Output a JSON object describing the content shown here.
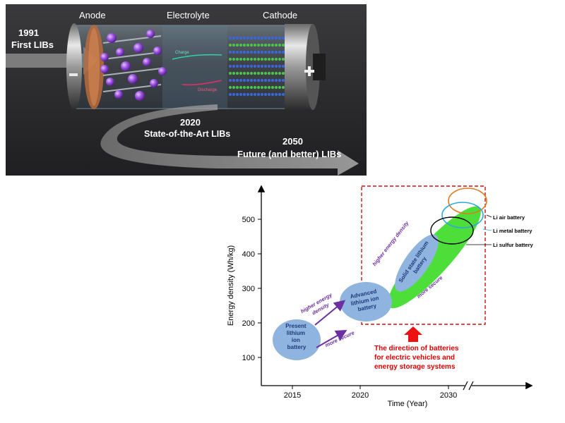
{
  "battery_figure": {
    "electrodes": {
      "anode": "Anode",
      "electrolyte": "Electrolyte",
      "cathode": "Cathode"
    },
    "terminals": {
      "negative": "−",
      "positive": "+"
    },
    "inner_labels": {
      "charge": "Charge",
      "discharge": "Discharge"
    },
    "timeline": {
      "y1991_year": "1991",
      "y1991_text": "First LIBs",
      "y2020_year": "2020",
      "y2020_text": "State-of-the-Art LIBs",
      "y2050_year": "2050",
      "y2050_text": "Future (and better) LIBs"
    }
  },
  "colors": {
    "battery_bg": "#2c2c2e",
    "ion_purple": "#9a4fe0",
    "copper": "#b86b3c",
    "green_blob": "#4dde3a",
    "blue_ellipse": "#8fb4e0",
    "arrow_purple": "#6b2fa0",
    "dashed_red": "#cc1111",
    "red_text": "#dd0000"
  },
  "chart_data": {
    "type": "diagram",
    "xlabel": "Time (Year)",
    "ylabel": "Energy density (Wh/kg)",
    "x_ticks": [
      "2015",
      "2020",
      "2030"
    ],
    "y_ticks": [
      "100",
      "200",
      "300",
      "400",
      "500"
    ],
    "ylim": [
      0,
      580
    ],
    "nodes": [
      {
        "name": "Present lithium ion battery",
        "lines": [
          "Present",
          "lithium",
          "ion",
          "battery"
        ]
      },
      {
        "name": "Advanced lithium ion battery",
        "lines": [
          "Advanced",
          "lithium ion",
          "battery"
        ]
      },
      {
        "name": "Solid state lithium battery",
        "lines": [
          "Solid state lithium",
          "battery"
        ]
      }
    ],
    "arrow_labels": {
      "higher_energy_density_1": [
        "higher energy",
        "density"
      ],
      "more_secure_1": "more secure",
      "higher_energy_density_2": "higher energy density",
      "more_secure_2": "more secure"
    },
    "future_batteries": [
      "Li air battery",
      "Li metal battery",
      "Li sulfur battery"
    ],
    "annotation": [
      "The direction of batteries",
      "for electric vehicles and",
      "energy storage systems"
    ]
  }
}
